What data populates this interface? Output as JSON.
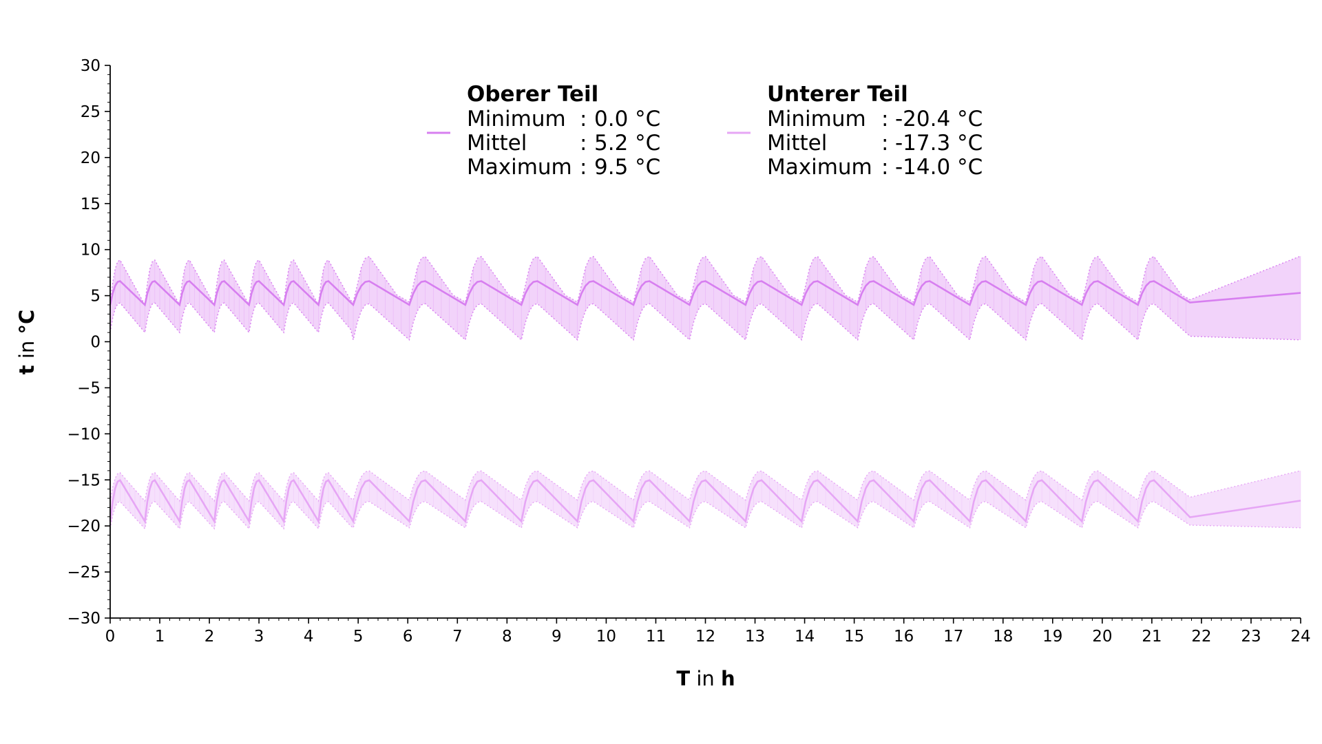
{
  "chart_data": {
    "type": "line",
    "xlabel_bold": "T",
    "xlabel_mid": " in ",
    "xlabel_unit": "h",
    "ylabel_bold": "t",
    "ylabel_mid": " in ",
    "ylabel_unit": "°C",
    "xlim": [
      0,
      24
    ],
    "ylim": [
      -30,
      30
    ],
    "x_ticks": [
      "0",
      "1",
      "2",
      "3",
      "4",
      "5",
      "6",
      "7",
      "8",
      "9",
      "10",
      "11",
      "12",
      "13",
      "14",
      "15",
      "16",
      "17",
      "18",
      "19",
      "20",
      "21",
      "22",
      "23",
      "24"
    ],
    "y_ticks": [
      "30",
      "25",
      "20",
      "15",
      "10",
      "5",
      "0",
      "−5",
      "−10",
      "−15",
      "−20",
      "−25",
      "−30"
    ],
    "y_tick_values": [
      30,
      25,
      20,
      15,
      10,
      5,
      0,
      -5,
      -10,
      -15,
      -20,
      -25,
      -30
    ],
    "grid": false,
    "legend_position": "top-center",
    "series": [
      {
        "name": "Oberer Teil",
        "color": "#d77ff0",
        "band_color": "#edc4f8",
        "stats": [
          {
            "label": "Minimum",
            "sep": ":",
            "value": "0.0 °C"
          },
          {
            "label": "Mittel",
            "sep": ":",
            "value": "5.2 °C"
          },
          {
            "label": "Maximum",
            "sep": ":",
            "value": "9.5 °C"
          }
        ],
        "mean": 5.2,
        "min": 0.0,
        "max": 9.5,
        "cycle_start_h": 0.0,
        "cycles_early": {
          "count": 7,
          "period_h": 0.7,
          "low": 4.0,
          "high": 6.6,
          "band_low": 1.0,
          "band_high": 8.9
        },
        "cycles_late": {
          "count": 15,
          "period_h": 1.13,
          "low": 4.0,
          "high": 6.6,
          "band_low": 0.2,
          "band_high": 9.3
        }
      },
      {
        "name": "Unterer Teil",
        "color": "#e6a6f5",
        "band_color": "#f3d6fb",
        "stats": [
          {
            "label": "Minimum",
            "sep": ":",
            "value": "-20.4 °C"
          },
          {
            "label": "Mittel",
            "sep": ":",
            "value": "-17.3 °C"
          },
          {
            "label": "Maximum",
            "sep": ":",
            "value": "-14.0 °C"
          }
        ],
        "mean": -17.3,
        "min": -20.4,
        "max": -14.0,
        "cycle_start_h": 0.0,
        "cycles_early": {
          "count": 7,
          "period_h": 0.7,
          "low": -19.5,
          "high": -15.0,
          "band_low": -20.3,
          "band_high": -14.2
        },
        "cycles_late": {
          "count": 15,
          "period_h": 1.13,
          "low": -19.5,
          "high": -15.0,
          "band_low": -20.2,
          "band_high": -14.0
        }
      }
    ]
  }
}
